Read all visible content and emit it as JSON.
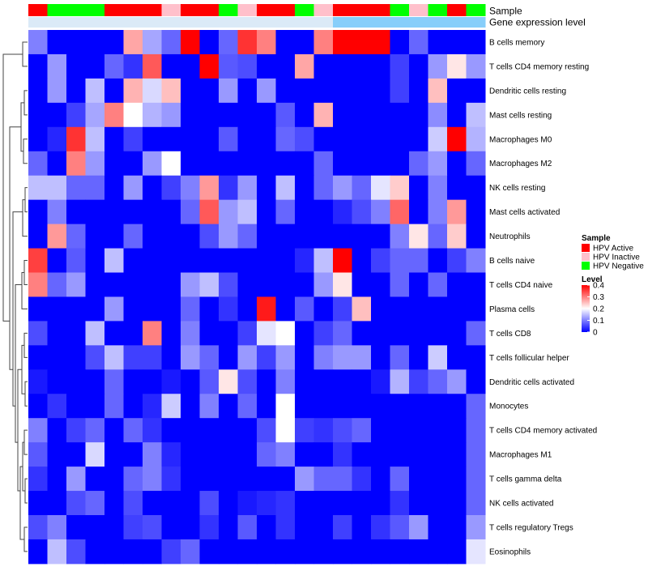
{
  "chart_data": {
    "type": "heatmap",
    "annotation_tracks": [
      {
        "label": "Sample",
        "values": [
          "HPV Active",
          "HPV Negative",
          "HPV Negative",
          "HPV Negative",
          "HPV Active",
          "HPV Active",
          "HPV Active",
          "HPV Inactive",
          "HPV Active",
          "HPV Active",
          "HPV Negative",
          "HPV Inactive",
          "HPV Active",
          "HPV Active",
          "HPV Negative",
          "HPV Inactive",
          "HPV Active",
          "HPV Active",
          "HPV Active",
          "HPV Negative",
          "HPV Inactive",
          "HPV Negative",
          "HPV Active",
          "HPV Negative"
        ]
      },
      {
        "label": "Gene expression level",
        "values": [
          "low",
          "low",
          "low",
          "low",
          "low",
          "low",
          "low",
          "low",
          "low",
          "low",
          "low",
          "low",
          "low",
          "low",
          "low",
          "low",
          "high",
          "high",
          "high",
          "high",
          "high",
          "high",
          "high",
          "high"
        ]
      }
    ],
    "annotation_colors": {
      "HPV Active": "#ff0000",
      "HPV Inactive": "#ffc0cb",
      "HPV Negative": "#00ff00",
      "low": "#dbeaf7",
      "high": "#87cefa"
    },
    "rows": [
      "B cells memory",
      "T cells CD4 memory resting",
      "Dendritic cells resting",
      "Mast cells resting",
      "Macrophages M0",
      "Macrophages M2",
      "NK cells resting",
      "Mast cells activated",
      "Neutrophils",
      "B cells naive",
      "T cells CD4 naive",
      "Plasma cells",
      "T cells CD8",
      "T cells follicular helper",
      "Dendritic cells activated",
      "Monocytes",
      "T cells CD4 memory activated",
      "Macrophages M1",
      "T cells gamma delta",
      "NK cells activated",
      "T cells regulatory  Tregs",
      "Eosinophils"
    ],
    "values": [
      [
        0.1,
        0,
        0,
        0,
        0,
        0.27,
        0.13,
        0.08,
        0.4,
        0,
        0.08,
        0.36,
        0.3,
        0,
        0,
        0.3,
        0.4,
        0.4,
        0.4,
        0,
        0.08,
        0,
        0,
        0
      ],
      [
        0,
        0.12,
        0,
        0,
        0.08,
        0.04,
        0.33,
        0,
        0,
        0.4,
        0.07,
        0.06,
        0,
        0,
        0.27,
        0,
        0,
        0,
        0,
        0.05,
        0,
        0.12,
        0.22,
        0.12
      ],
      [
        0,
        0.12,
        0,
        0.15,
        0,
        0.26,
        0.17,
        0.25,
        0,
        0,
        0.12,
        0,
        0.12,
        0,
        0,
        0,
        0,
        0,
        0,
        0.05,
        0,
        0.25,
        0,
        0
      ],
      [
        0,
        0,
        0.05,
        0.13,
        0.3,
        0.2,
        0.14,
        0.12,
        0,
        0,
        0,
        0,
        0,
        0.07,
        0,
        0.26,
        0,
        0,
        0,
        0,
        0,
        0.11,
        0,
        0.15
      ],
      [
        0,
        0.03,
        0.36,
        0.15,
        0,
        0.05,
        0,
        0,
        0,
        0,
        0.07,
        0,
        0,
        0.08,
        0.06,
        0,
        0,
        0,
        0,
        0,
        0,
        0.16,
        0.4,
        0.14
      ],
      [
        0.08,
        0,
        0.3,
        0.12,
        0,
        0,
        0.12,
        0.2,
        0,
        0,
        0,
        0,
        0,
        0,
        0,
        0.08,
        0,
        0,
        0,
        0,
        0.08,
        0.12,
        0,
        0.08
      ],
      [
        0.15,
        0.15,
        0.08,
        0.08,
        0,
        0.12,
        0,
        0.05,
        0.1,
        0.28,
        0.04,
        0.12,
        0,
        0.15,
        0,
        0.08,
        0.12,
        0.08,
        0.18,
        0.24,
        0,
        0.1,
        0,
        0
      ],
      [
        0,
        0.1,
        0,
        0,
        0,
        0,
        0,
        0,
        0.08,
        0.33,
        0.12,
        0.15,
        0,
        0.08,
        0,
        0,
        0.03,
        0.06,
        0.1,
        0.32,
        0,
        0.1,
        0.28,
        0
      ],
      [
        0,
        0.28,
        0.08,
        0,
        0,
        0.08,
        0,
        0,
        0,
        0.06,
        0.12,
        0.08,
        0,
        0,
        0,
        0,
        0,
        0,
        0,
        0.1,
        0.22,
        0.08,
        0.24,
        0
      ],
      [
        0.35,
        0,
        0.07,
        0,
        0.15,
        0,
        0,
        0,
        0,
        0,
        0,
        0,
        0,
        0,
        0.03,
        0.15,
        0.4,
        0,
        0.05,
        0.08,
        0.08,
        0,
        0.05,
        0.1
      ],
      [
        0.3,
        0.08,
        0.12,
        0,
        0,
        0,
        0,
        0,
        0.12,
        0.15,
        0.06,
        0,
        0,
        0,
        0,
        0.12,
        0.22,
        0,
        0,
        0.08,
        0,
        0.08,
        0,
        0
      ],
      [
        0,
        0,
        0,
        0,
        0.12,
        0,
        0,
        0,
        0.08,
        0,
        0.04,
        0,
        0.38,
        0,
        0.07,
        0,
        0.05,
        0.25,
        0,
        0,
        0,
        0,
        0,
        0
      ],
      [
        0.06,
        0,
        0,
        0.15,
        0,
        0,
        0.3,
        0,
        0.1,
        0,
        0,
        0.05,
        0.18,
        0.2,
        0,
        0.05,
        0.08,
        0,
        0,
        0,
        0,
        0,
        0,
        0.08
      ],
      [
        0,
        0,
        0,
        0.06,
        0.15,
        0.05,
        0.05,
        0,
        0.12,
        0.08,
        0,
        0.12,
        0.05,
        0.12,
        0,
        0.1,
        0.12,
        0.12,
        0,
        0.08,
        0,
        0.16,
        0,
        0
      ],
      [
        0.02,
        0,
        0,
        0,
        0.08,
        0,
        0,
        0.02,
        0,
        0.07,
        0.22,
        0.06,
        0,
        0.1,
        0,
        0,
        0,
        0,
        0.02,
        0.14,
        0.05,
        0.08,
        0.12,
        0
      ],
      [
        0,
        0.04,
        0,
        0,
        0.08,
        0,
        0.03,
        0.16,
        0,
        0.1,
        0,
        0.08,
        0,
        0.2,
        0,
        0,
        0,
        0,
        0,
        0,
        0,
        0,
        0,
        0.08
      ],
      [
        0.1,
        0,
        0.05,
        0.08,
        0,
        0.08,
        0.04,
        0,
        0,
        0,
        0,
        0,
        0.06,
        0.2,
        0.05,
        0.04,
        0.06,
        0.08,
        0,
        0,
        0,
        0,
        0,
        0.08
      ],
      [
        0.07,
        0,
        0,
        0.17,
        0,
        0,
        0.1,
        0.03,
        0,
        0,
        0,
        0,
        0.08,
        0.1,
        0,
        0,
        0.04,
        0,
        0,
        0,
        0,
        0,
        0,
        0.08
      ],
      [
        0.04,
        0,
        0.12,
        0,
        0,
        0.08,
        0.1,
        0.04,
        0,
        0,
        0,
        0,
        0,
        0,
        0.12,
        0.08,
        0.08,
        0.04,
        0,
        0.08,
        0,
        0,
        0,
        0.08
      ],
      [
        0,
        0,
        0.06,
        0.08,
        0,
        0.06,
        0,
        0,
        0,
        0.06,
        0,
        0.02,
        0.03,
        0.04,
        0,
        0,
        0,
        0,
        0,
        0.04,
        0,
        0,
        0,
        0.08
      ],
      [
        0.06,
        0.1,
        0,
        0,
        0,
        0.05,
        0.06,
        0,
        0,
        0.04,
        0,
        0.07,
        0,
        0.04,
        0,
        0,
        0.05,
        0,
        0.04,
        0.07,
        0.12,
        0,
        0,
        0.12
      ],
      [
        0,
        0.15,
        0.06,
        0,
        0,
        0,
        0,
        0.05,
        0.08,
        0,
        0,
        0,
        0,
        0,
        0,
        0,
        0,
        0,
        0,
        0,
        0,
        0,
        0,
        0.18
      ]
    ],
    "color_scale": {
      "low": "#0000ff",
      "mid": "#ffffff",
      "high": "#ff0000",
      "range": [
        0,
        0.4
      ]
    },
    "legends": {
      "sample": {
        "title": "Sample",
        "items": [
          "HPV Active",
          "HPV Inactive",
          "HPV Negative"
        ]
      },
      "level": {
        "title": "Level",
        "ticks": [
          "0.4",
          "0.3",
          "0.2",
          "0.1",
          "0"
        ],
        "tick_values": [
          0.4,
          0.3,
          0.2,
          0.1,
          0
        ]
      }
    },
    "row_dendrogram": true
  }
}
